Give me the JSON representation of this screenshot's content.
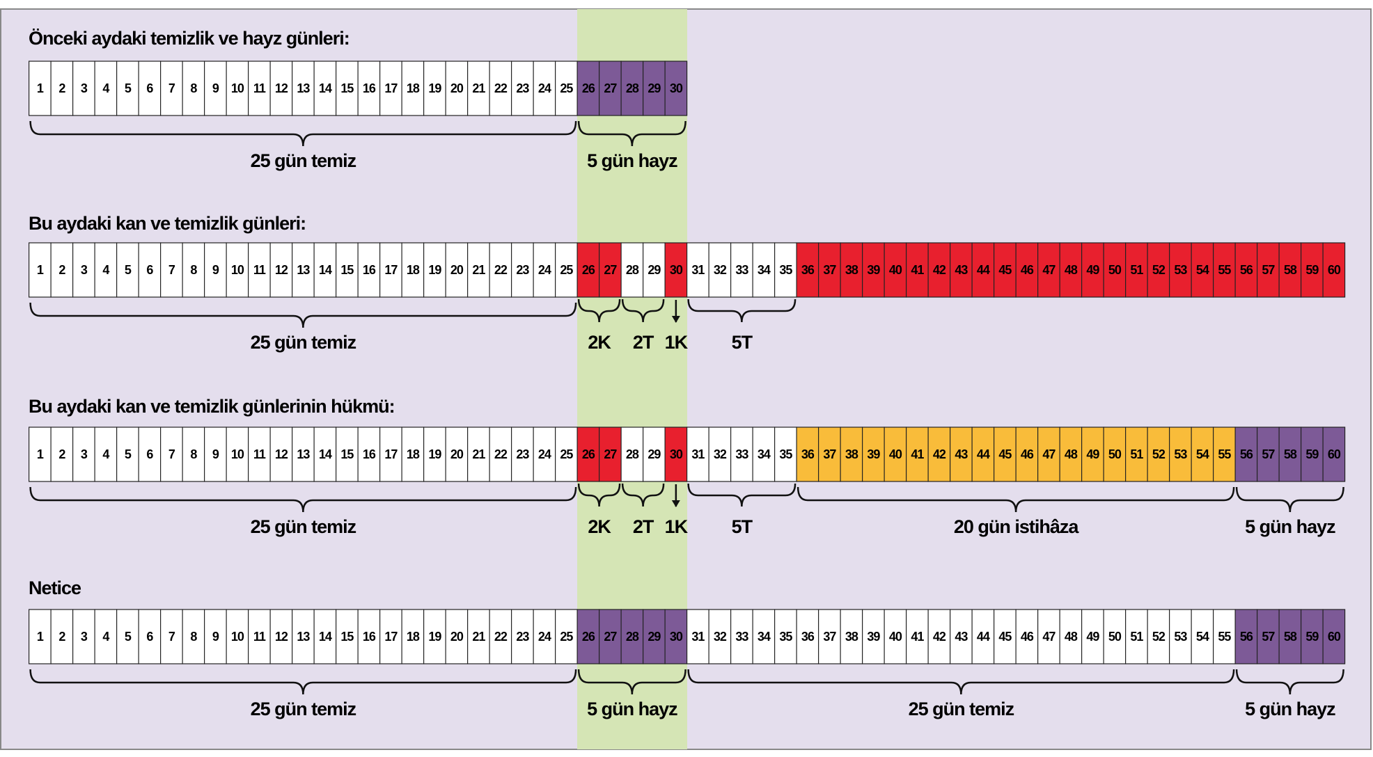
{
  "sections": [
    {
      "title": "Önceki aydaki temizlik ve hayz günleri:",
      "segments": [
        {
          "color": "#ffffff",
          "days": [
            1,
            2,
            3,
            4,
            5,
            6,
            7,
            8,
            9,
            10,
            11,
            12,
            13,
            14,
            15,
            16,
            17,
            18,
            19,
            20,
            21,
            22,
            23,
            24,
            25
          ]
        },
        {
          "color": "#7d5a97",
          "days": [
            26,
            27,
            28,
            29,
            30
          ]
        }
      ],
      "braces": [
        {
          "label": "25 gün temiz"
        },
        {
          "label": "5 gün hayz"
        }
      ]
    },
    {
      "title": "Bu aydaki kan ve temizlik günleri:",
      "segments": [
        {
          "color": "#ffffff",
          "days": [
            1,
            2,
            3,
            4,
            5,
            6,
            7,
            8,
            9,
            10,
            11,
            12,
            13,
            14,
            15,
            16,
            17,
            18,
            19,
            20,
            21,
            22,
            23,
            24,
            25
          ]
        },
        {
          "color": "#e8202e",
          "days": [
            26,
            27
          ]
        },
        {
          "color": "#ffffff",
          "days": [
            28,
            29
          ]
        },
        {
          "color": "#e8202e",
          "days": [
            30
          ]
        },
        {
          "color": "#ffffff",
          "days": [
            31,
            32,
            33,
            34,
            35
          ]
        },
        {
          "color": "#e8202e",
          "days": [
            36,
            37,
            38,
            39,
            40,
            41,
            42,
            43,
            44,
            45,
            46,
            47,
            48,
            49,
            50,
            51,
            52,
            53,
            54,
            55,
            56,
            57,
            58,
            59,
            60
          ]
        }
      ],
      "braces": [
        {
          "label": "25 gün temiz"
        },
        {
          "label": "2K"
        },
        {
          "label": "2T"
        },
        {
          "label": "1K"
        },
        {
          "label": "5T"
        }
      ]
    },
    {
      "title": "Bu aydaki kan ve temizlik günlerinin hükmü:",
      "segments": [
        {
          "color": "#ffffff",
          "days": [
            1,
            2,
            3,
            4,
            5,
            6,
            7,
            8,
            9,
            10,
            11,
            12,
            13,
            14,
            15,
            16,
            17,
            18,
            19,
            20,
            21,
            22,
            23,
            24,
            25
          ]
        },
        {
          "color": "#e8202e",
          "days": [
            26,
            27
          ]
        },
        {
          "color": "#ffffff",
          "days": [
            28,
            29
          ]
        },
        {
          "color": "#e8202e",
          "days": [
            30
          ]
        },
        {
          "color": "#ffffff",
          "days": [
            31,
            32,
            33,
            34,
            35
          ]
        },
        {
          "color": "#f9bc3a",
          "days": [
            36,
            37,
            38,
            39,
            40,
            41,
            42,
            43,
            44,
            45,
            46,
            47,
            48,
            49,
            50,
            51,
            52,
            53,
            54,
            55
          ]
        },
        {
          "color": "#7d5a97",
          "days": [
            56,
            57,
            58,
            59,
            60
          ]
        }
      ],
      "braces": [
        {
          "label": "25 gün temiz"
        },
        {
          "label": "2K"
        },
        {
          "label": "2T"
        },
        {
          "label": "1K"
        },
        {
          "label": "5T"
        },
        {
          "label": "20 gün istihâza"
        },
        {
          "label": "5 gün hayz"
        }
      ]
    },
    {
      "title": "Netice",
      "segments": [
        {
          "color": "#ffffff",
          "days": [
            1,
            2,
            3,
            4,
            5,
            6,
            7,
            8,
            9,
            10,
            11,
            12,
            13,
            14,
            15,
            16,
            17,
            18,
            19,
            20,
            21,
            22,
            23,
            24,
            25
          ]
        },
        {
          "color": "#7d5a97",
          "days": [
            26,
            27,
            28,
            29,
            30
          ]
        },
        {
          "color": "#ffffff",
          "days": [
            31,
            32,
            33,
            34,
            35,
            36,
            37,
            38,
            39,
            40,
            41,
            42,
            43,
            44,
            45,
            46,
            47,
            48,
            49,
            50,
            51,
            52,
            53,
            54,
            55
          ]
        },
        {
          "color": "#7d5a97",
          "days": [
            56,
            57,
            58,
            59,
            60
          ]
        }
      ],
      "braces": [
        {
          "label": "25 gün temiz"
        },
        {
          "label": "5 gün hayz"
        },
        {
          "label": "25 gün temiz"
        },
        {
          "label": "5 gün hayz"
        }
      ]
    }
  ]
}
